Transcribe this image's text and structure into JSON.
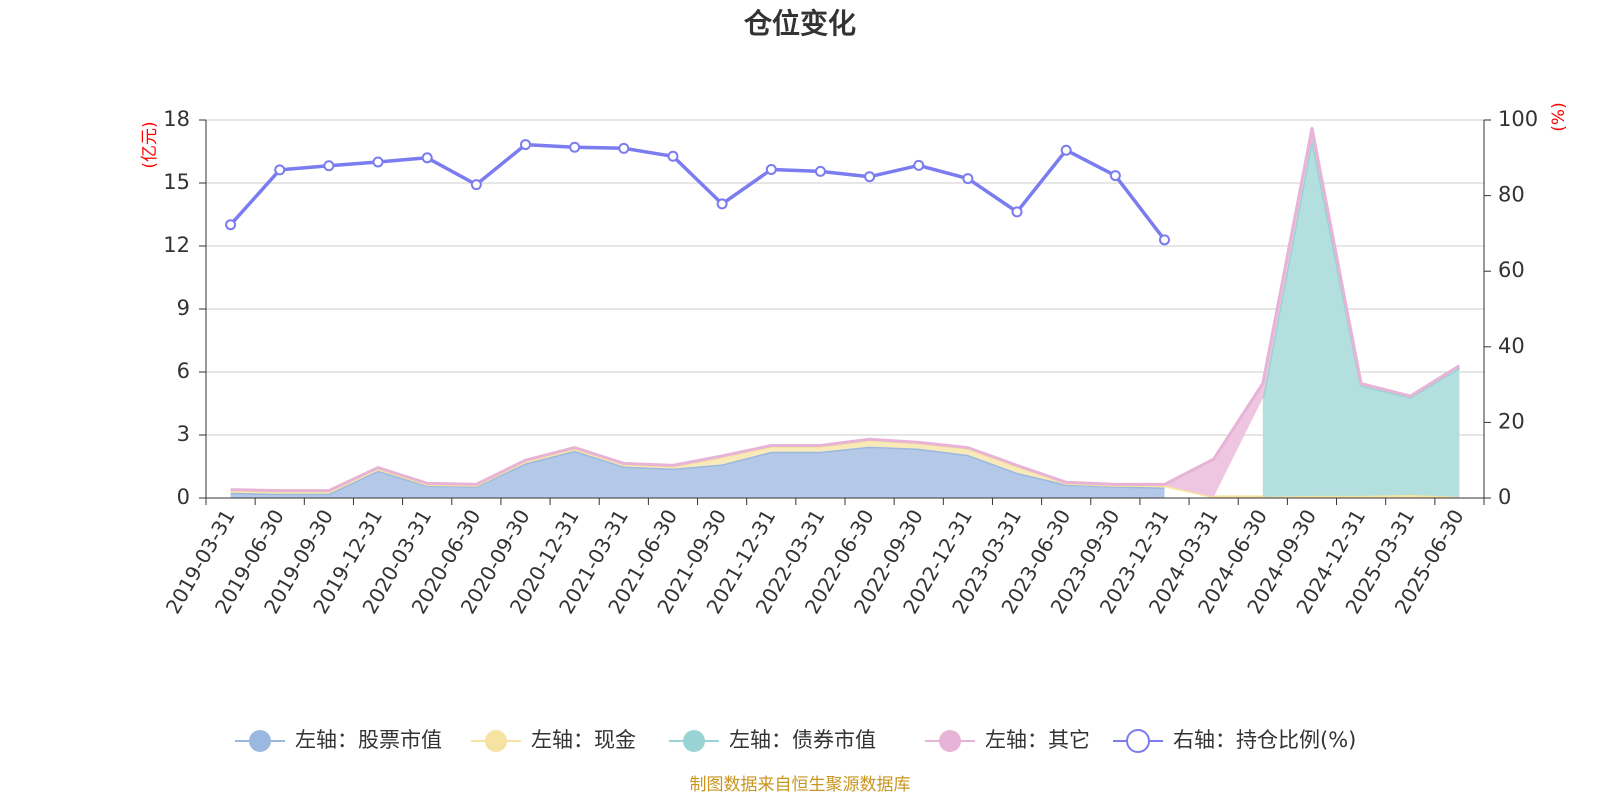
{
  "chart_data": {
    "type": "area",
    "title": "仓位变化",
    "left_axis_unit": "(亿元)",
    "right_axis_unit": "(%)",
    "left_ylim": [
      0,
      18
    ],
    "left_yticks": [
      0,
      3,
      6,
      9,
      12,
      15,
      18
    ],
    "right_ylim": [
      0,
      100
    ],
    "right_yticks": [
      0,
      20,
      40,
      60,
      80,
      100
    ],
    "grid": true,
    "legend_position": "bottom",
    "categories": [
      "2019-03-31",
      "2019-06-30",
      "2019-09-30",
      "2019-12-31",
      "2020-03-31",
      "2020-06-30",
      "2020-09-30",
      "2020-12-31",
      "2021-03-31",
      "2021-06-30",
      "2021-09-30",
      "2021-12-31",
      "2022-03-31",
      "2022-06-30",
      "2022-09-30",
      "2022-12-31",
      "2023-03-31",
      "2023-06-30",
      "2023-09-30",
      "2023-12-31",
      "2024-03-31",
      "2024-06-30",
      "2024-09-30",
      "2024-12-31",
      "2025-03-31",
      "2025-06-30"
    ],
    "series": [
      {
        "name": "左轴：股票市值",
        "axis": "left",
        "kind": "stacked-area",
        "color": "#9bb8e0",
        "fill": "#b4c9e8",
        "values": [
          0.25,
          0.2,
          0.2,
          1.3,
          0.6,
          0.55,
          1.65,
          2.25,
          1.5,
          1.4,
          1.6,
          2.2,
          2.2,
          2.45,
          2.35,
          2.05,
          1.2,
          0.65,
          0.55,
          0.5,
          null,
          null,
          null,
          null,
          null,
          null
        ]
      },
      {
        "name": "左轴：现金",
        "axis": "left",
        "kind": "stacked-area",
        "color": "#f7e3a1",
        "fill": "#f9eab9",
        "values": [
          0.1,
          0.1,
          0.1,
          0.1,
          0.05,
          0.05,
          0.1,
          0.1,
          0.1,
          0.1,
          0.35,
          0.25,
          0.25,
          0.3,
          0.25,
          0.3,
          0.3,
          0.05,
          0.05,
          0.1,
          0.05,
          0.05,
          0.1,
          0.1,
          0.15,
          0.05
        ]
      },
      {
        "name": "左轴：债券市值",
        "axis": "left",
        "kind": "stacked-area",
        "color": "#9ad3d3",
        "fill": "#b3e0de",
        "values": [
          null,
          null,
          null,
          null,
          null,
          null,
          null,
          null,
          null,
          null,
          null,
          null,
          null,
          null,
          null,
          null,
          null,
          null,
          null,
          null,
          null,
          4.7,
          17.0,
          5.25,
          4.65,
          6.15
        ]
      },
      {
        "name": "左轴：其它",
        "axis": "left",
        "kind": "stacked-area",
        "color": "#e7b3d7",
        "fill": "#eec6e1",
        "values": [
          0.05,
          0.05,
          0.05,
          0.05,
          0.05,
          0.05,
          0.05,
          0.05,
          0.05,
          0.05,
          0.05,
          0.05,
          0.05,
          0.05,
          0.05,
          0.05,
          0.05,
          0.05,
          0.05,
          0.05,
          1.8,
          0.7,
          0.5,
          0.1,
          0.05,
          0.1
        ]
      },
      {
        "name": "右轴：持仓比例(%)",
        "axis": "right",
        "kind": "line",
        "color": "#7b7cf0",
        "values": [
          72.3,
          86.8,
          87.9,
          88.9,
          90.0,
          82.9,
          93.5,
          92.8,
          92.5,
          90.4,
          77.8,
          86.9,
          86.4,
          85.0,
          88.0,
          84.5,
          75.7,
          92.0,
          85.3,
          68.3,
          null,
          null,
          null,
          null,
          null,
          null
        ]
      }
    ]
  },
  "footer": {
    "source": "制图数据来自恒生聚源数据库"
  }
}
